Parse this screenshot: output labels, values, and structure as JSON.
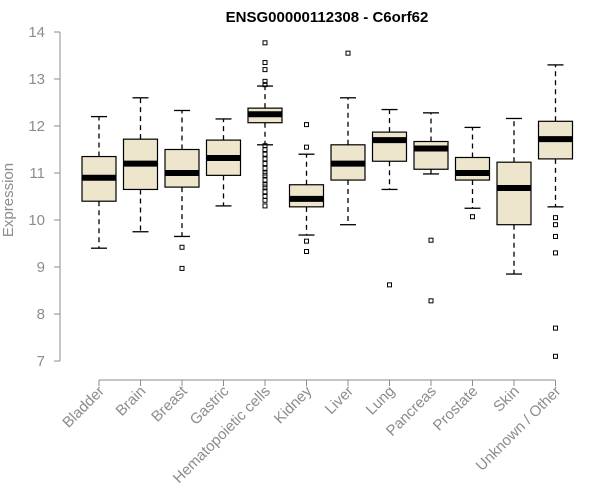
{
  "chart_data": {
    "type": "box",
    "title": "ENSG00000112308 - C6orf62",
    "ylabel": "Expression",
    "ylim": [
      7,
      14
    ],
    "yticks": [
      "7",
      "8",
      "9",
      "10",
      "11",
      "12",
      "13",
      "14"
    ],
    "categories": [
      "Bladder",
      "Brain",
      "Breast",
      "Gastric",
      "Hematopoietic cells",
      "Kidney",
      "Liver",
      "Lung",
      "Pancreas",
      "Prostate",
      "Skin",
      "Unknown / Other"
    ],
    "boxes": [
      {
        "whisker_low": 9.4,
        "q1": 10.4,
        "median": 10.9,
        "q3": 11.35,
        "whisker_high": 12.2,
        "outliers": []
      },
      {
        "whisker_low": 9.75,
        "q1": 10.65,
        "median": 11.2,
        "q3": 11.72,
        "whisker_high": 12.6,
        "outliers": []
      },
      {
        "whisker_low": 9.65,
        "q1": 10.7,
        "median": 11.0,
        "q3": 11.5,
        "whisker_high": 12.33,
        "outliers": [
          9.42,
          8.97
        ]
      },
      {
        "whisker_low": 10.3,
        "q1": 10.95,
        "median": 11.32,
        "q3": 11.7,
        "whisker_high": 12.15,
        "outliers": []
      },
      {
        "whisker_low": 11.6,
        "q1": 12.07,
        "median": 12.25,
        "q3": 12.38,
        "whisker_high": 12.85,
        "outliers": [
          13.77,
          13.35,
          13.2,
          12.95,
          12.88,
          11.58,
          11.5,
          11.4,
          11.3,
          11.2,
          11.1,
          11.0,
          10.95,
          10.85,
          10.75,
          10.7,
          10.6,
          10.5,
          10.42,
          10.3
        ]
      },
      {
        "whisker_low": 9.68,
        "q1": 10.28,
        "median": 10.45,
        "q3": 10.75,
        "whisker_high": 11.4,
        "outliers": [
          12.03,
          11.55,
          9.55,
          9.33
        ]
      },
      {
        "whisker_low": 9.9,
        "q1": 10.85,
        "median": 11.2,
        "q3": 11.6,
        "whisker_high": 12.6,
        "outliers": [
          13.55
        ]
      },
      {
        "whisker_low": 10.65,
        "q1": 11.25,
        "median": 11.7,
        "q3": 11.87,
        "whisker_high": 12.35,
        "outliers": [
          8.62
        ]
      },
      {
        "whisker_low": 10.98,
        "q1": 11.08,
        "median": 11.52,
        "q3": 11.67,
        "whisker_high": 12.28,
        "outliers": [
          9.57,
          8.28
        ]
      },
      {
        "whisker_low": 10.25,
        "q1": 10.85,
        "median": 11.0,
        "q3": 11.33,
        "whisker_high": 11.97,
        "outliers": [
          10.07
        ]
      },
      {
        "whisker_low": 8.85,
        "q1": 9.9,
        "median": 10.68,
        "q3": 11.23,
        "whisker_high": 12.16,
        "outliers": []
      },
      {
        "whisker_low": 10.28,
        "q1": 11.3,
        "median": 11.72,
        "q3": 12.1,
        "whisker_high": 13.3,
        "outliers": [
          10.05,
          9.9,
          9.65,
          9.3,
          7.7,
          7.1
        ]
      }
    ],
    "colors": {
      "box_fill": "#ede6cc",
      "box_stroke": "#000000",
      "axis": "#8c8c8c"
    },
    "grid": false,
    "legend": "none"
  }
}
